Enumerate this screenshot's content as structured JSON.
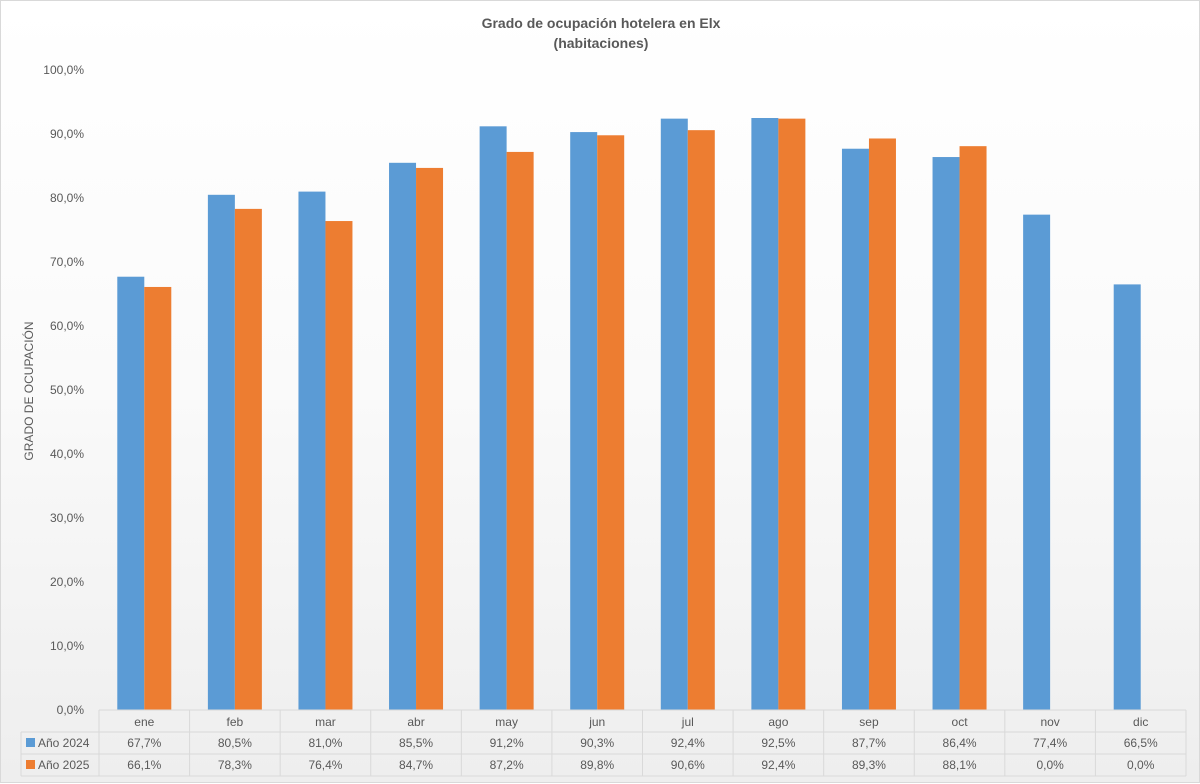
{
  "chart_data": {
    "type": "bar",
    "title": "Grado de ocupación hotelera en Elx",
    "subtitle": "(habitaciones)",
    "ylabel": "GRADO DE OCUPACIÓN",
    "xlabel": "",
    "ylim": [
      0,
      100
    ],
    "yticks": [
      "0,0%",
      "10,0%",
      "20,0%",
      "30,0%",
      "40,0%",
      "50,0%",
      "60,0%",
      "70,0%",
      "80,0%",
      "90,0%",
      "100,0%"
    ],
    "grid": false,
    "legend": "data-table",
    "categories": [
      "ene",
      "feb",
      "mar",
      "abr",
      "may",
      "jun",
      "jul",
      "ago",
      "sep",
      "oct",
      "nov",
      "dic"
    ],
    "series": [
      {
        "name": "Año 2024",
        "color": "#5b9bd5",
        "values": [
          67.7,
          80.5,
          81.0,
          85.5,
          91.2,
          90.3,
          92.4,
          92.5,
          87.7,
          86.4,
          77.4,
          66.5
        ],
        "labels": [
          "67,7%",
          "80,5%",
          "81,0%",
          "85,5%",
          "91,2%",
          "90,3%",
          "92,4%",
          "92,5%",
          "87,7%",
          "86,4%",
          "77,4%",
          "66,5%"
        ]
      },
      {
        "name": "Año 2025",
        "color": "#ed7d31",
        "values": [
          66.1,
          78.3,
          76.4,
          84.7,
          87.2,
          89.8,
          90.6,
          92.4,
          89.3,
          88.1,
          0.0,
          0.0
        ],
        "labels": [
          "66,1%",
          "78,3%",
          "76,4%",
          "84,7%",
          "87,2%",
          "89,8%",
          "90,6%",
          "92,4%",
          "89,3%",
          "88,1%",
          "0,0%",
          "0,0%"
        ]
      }
    ]
  }
}
